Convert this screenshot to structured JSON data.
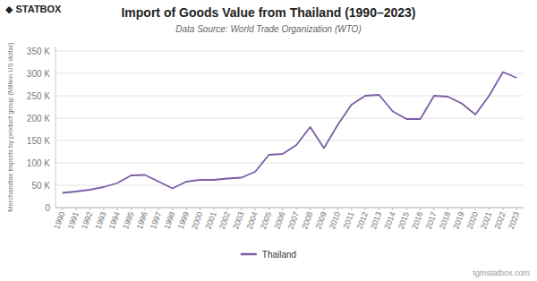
{
  "chart_data": {
    "type": "line",
    "title": "Import of Goods Value from Thailand (1990–2023)",
    "subtitle": "Data Source: World Trade Organization (WTO)",
    "y_label": "Merchandise imports by product group (Million US dollar)",
    "annotations": [
      "◆ STATBOX",
      "tgmstatbox.com"
    ],
    "x": [
      1990,
      1991,
      1992,
      1993,
      1994,
      1995,
      1996,
      1997,
      1998,
      1999,
      2000,
      2001,
      2002,
      2003,
      2004,
      2005,
      2006,
      2007,
      2008,
      2009,
      2010,
      2011,
      2012,
      2013,
      2014,
      2015,
      2016,
      2017,
      2018,
      2019,
      2020,
      2021,
      2022,
      2023
    ],
    "series": [
      {
        "name": "Thailand",
        "color": "#7B5EA7",
        "values": [
          33000,
          36000,
          40000,
          46000,
          55000,
          72000,
          73000,
          58000,
          43000,
          58000,
          62000,
          62000,
          65000,
          67000,
          80000,
          118000,
          120000,
          140000,
          180000,
          133000,
          185000,
          230000,
          250000,
          252000,
          215000,
          198000,
          198000,
          250000,
          248000,
          233000,
          208000,
          250000,
          303000,
          290000
        ]
      }
    ],
    "xlim": [
      1989.5,
      2023.5
    ],
    "xticks": [
      1990,
      1991,
      1992,
      1993,
      1994,
      1995,
      1996,
      1997,
      1998,
      1999,
      2000,
      2001,
      2002,
      2003,
      2004,
      2005,
      2006,
      2007,
      2008,
      2009,
      2010,
      2011,
      2012,
      2013,
      2014,
      2015,
      2016,
      2017,
      2018,
      2019,
      2020,
      2021,
      2022,
      2023
    ],
    "ylim": [
      0,
      360000
    ],
    "yticks": [
      0,
      {
        "value": 50000,
        "label": "50 K"
      },
      {
        "value": 100000,
        "label": "100 K"
      },
      {
        "value": 150000,
        "label": "150 K"
      },
      {
        "value": 200000,
        "label": "200 K"
      },
      {
        "value": 250000,
        "label": "250 K"
      },
      {
        "value": 300000,
        "label": "300 K"
      },
      {
        "value": 350000,
        "label": "350 K"
      }
    ],
    "grid": true,
    "legend": "bottom"
  }
}
